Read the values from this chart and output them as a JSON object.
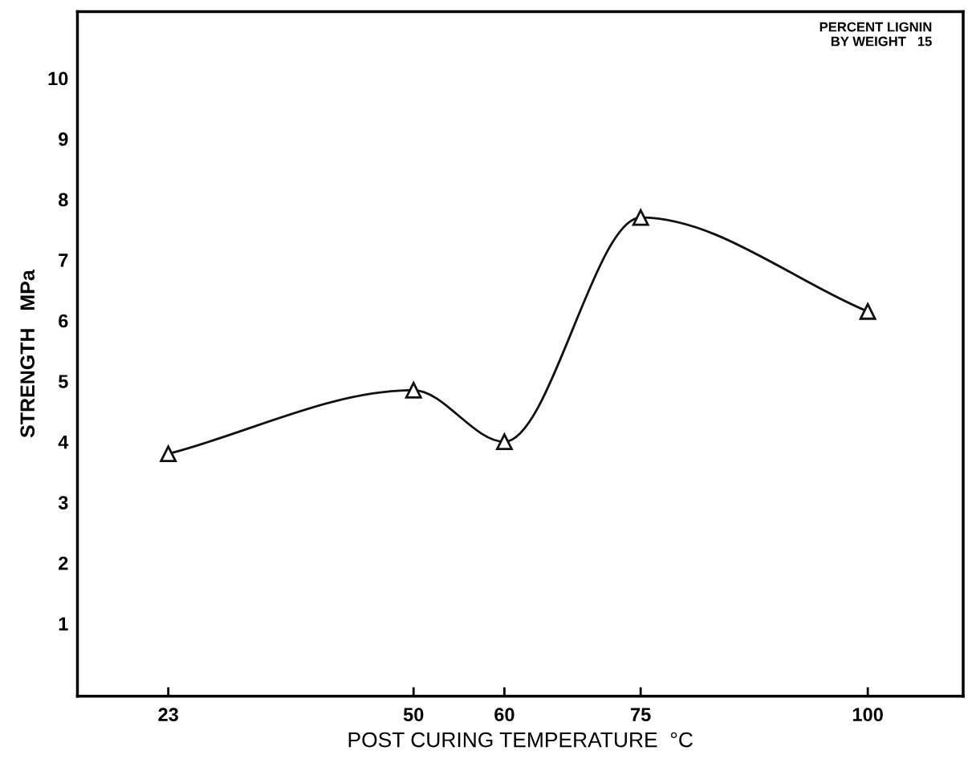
{
  "chart_data": {
    "type": "line",
    "xlabel": "POST CURING TEMPERATURE  °C",
    "ylabel": "STRENGTH   MPa",
    "x": [
      23,
      50,
      60,
      75,
      100
    ],
    "series": [
      {
        "color": "#111111",
        "values": [
          3.8,
          4.85,
          4.0,
          7.7,
          6.15
        ]
      }
    ],
    "xlim": [
      13,
      110.5
    ],
    "ylim": [
      -0.2,
      11.1
    ],
    "xticks": [
      23,
      50,
      60,
      75,
      100
    ],
    "yticks": [
      1,
      2,
      3,
      4,
      5,
      6,
      7,
      8,
      9,
      10
    ],
    "marker": "triangle",
    "line_style": "solid",
    "grid": false,
    "legend": false,
    "annotations": [
      "PERCENT LIGNIN\nBY WEIGHT   15"
    ]
  }
}
